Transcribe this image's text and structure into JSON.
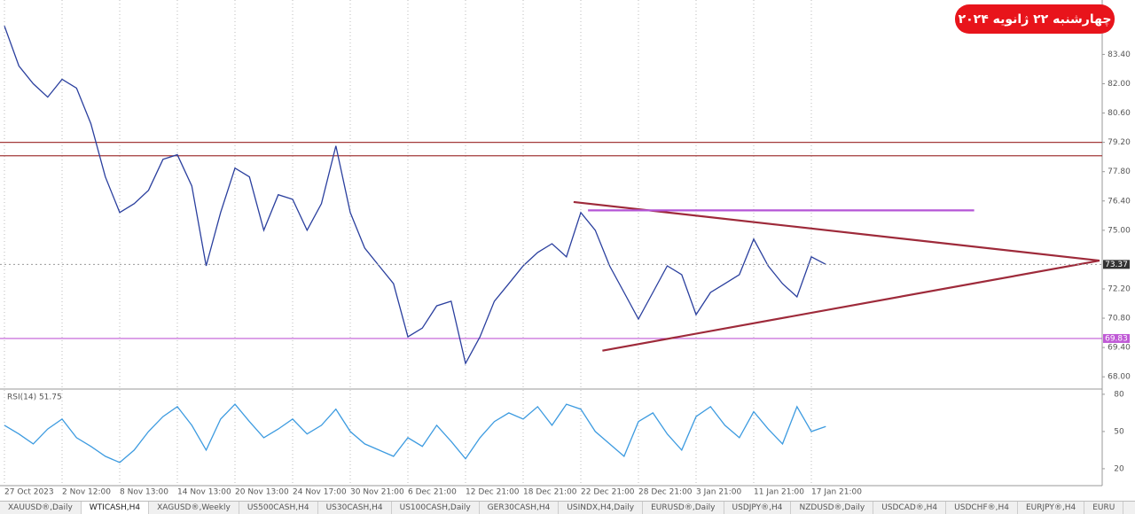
{
  "chart_data": [
    {
      "type": "line",
      "color": "#2a3f9e",
      "grid": true,
      "categories": [
        "27 Oct 2023",
        null,
        null,
        null,
        "2 Nov 12:00",
        null,
        null,
        null,
        "8 Nov 13:00",
        null,
        null,
        null,
        "14 Nov 13:00",
        null,
        null,
        null,
        "20 Nov 13:00",
        null,
        null,
        null,
        "24 Nov 17:00",
        null,
        null,
        null,
        "30 Nov 21:00",
        null,
        null,
        null,
        "6 Dec 21:00",
        null,
        null,
        null,
        "12 Dec 21:00",
        null,
        null,
        null,
        "18 Dec 21:00",
        null,
        null,
        null,
        "22 Dec 21:00",
        null,
        null,
        null,
        "28 Dec 21:00",
        null,
        null,
        null,
        "3 Jan 21:00",
        null,
        null,
        null,
        "11 Jan 21:00",
        null,
        null,
        null,
        "17 Jan 21:00",
        null
      ],
      "values": [
        84.76,
        82.85,
        82.0,
        81.36,
        82.21,
        81.79,
        80.09,
        77.55,
        75.85,
        76.27,
        76.91,
        78.39,
        78.61,
        77.12,
        73.3,
        75.85,
        77.97,
        77.55,
        75.0,
        76.7,
        76.48,
        75.0,
        76.27,
        79.03,
        75.85,
        74.15,
        73.3,
        72.45,
        69.91,
        70.33,
        71.39,
        71.61,
        68.64,
        69.91,
        71.61,
        72.45,
        73.3,
        73.94,
        74.36,
        73.73,
        75.85,
        75.0,
        73.3,
        72.03,
        70.76,
        72.03,
        73.3,
        72.88,
        70.97,
        72.03,
        72.45,
        72.88,
        74.58,
        73.3,
        72.45,
        71.82,
        73.73,
        73.37
      ],
      "ylim": [
        67.5,
        86.0
      ],
      "yticks": [
        {
          "value": 83.4,
          "label": "83.40"
        },
        {
          "value": 82.0,
          "label": "82.00"
        },
        {
          "value": 80.6,
          "label": "80.60"
        },
        {
          "value": 79.2,
          "label": "79.20"
        },
        {
          "value": 77.8,
          "label": "77.80"
        },
        {
          "value": 76.4,
          "label": "76.40"
        },
        {
          "value": 75.0,
          "label": "75.00"
        },
        {
          "value": 72.2,
          "label": "72.20"
        },
        {
          "value": 70.8,
          "label": "70.80"
        },
        {
          "value": 69.4,
          "label": "69.40"
        },
        {
          "value": 68.0,
          "label": "68.00"
        }
      ],
      "current_price": 73.37,
      "hlines": [
        {
          "value": 79.2,
          "color": "#a33a3a"
        },
        {
          "value": 78.56,
          "color": "#a33a3a"
        },
        {
          "value": 69.83,
          "color": "#c05ad6",
          "label": 69.83
        }
      ],
      "trendlines": [
        {
          "x": [
            39.5,
            76
          ],
          "y": [
            76.35,
            73.55
          ],
          "color": "#9e2a3a"
        },
        {
          "x": [
            41.5,
            76
          ],
          "y": [
            69.25,
            73.55
          ],
          "color": "#9e2a3a"
        },
        {
          "x": [
            40.5,
            67.3
          ],
          "y": [
            75.95,
            75.95
          ],
          "color": "#b455d6"
        }
      ]
    },
    {
      "type": "line",
      "title": "RSI(14) 51.75",
      "color": "#3d9be0",
      "values": [
        55,
        48,
        40,
        52,
        60,
        45,
        38,
        30,
        25,
        35,
        50,
        62,
        70,
        55,
        35,
        60,
        72,
        58,
        45,
        52,
        60,
        48,
        55,
        68,
        50,
        40,
        35,
        30,
        45,
        38,
        55,
        42,
        28,
        45,
        58,
        65,
        60,
        70,
        55,
        72,
        68,
        50,
        40,
        30,
        58,
        65,
        48,
        35,
        62,
        70,
        55,
        45,
        66,
        52,
        40,
        70,
        50,
        54
      ],
      "ylim": [
        8.5,
        83.5
      ],
      "yticks": [
        80,
        50,
        20
      ]
    }
  ],
  "date_badge": "چهارشنبه ۲۲ ژانویه ۲۰۲۴",
  "tabs": [
    "XAUUSD®,Daily",
    "WTICASH,H4",
    "XAGUSD®,Weekly",
    "US500CASH,H4",
    "US30CASH,H4",
    "US100CASH,Daily",
    "GER30CASH,H4",
    "USINDX,H4,Daily",
    "EURUSD®,Daily",
    "USDJPY®,H4",
    "NZDUSD®,Daily",
    "USDCAD®,H4",
    "USDCHF®,H4",
    "EURJPY®,H4",
    "EURU"
  ],
  "active_tab": 1
}
